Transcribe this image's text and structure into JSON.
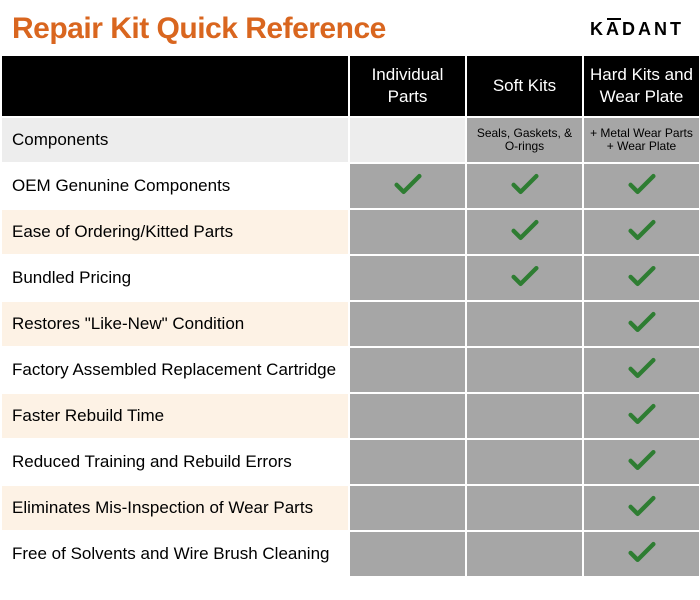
{
  "title": {
    "text": "Repair Kit Quick Reference",
    "color": "#d9661f",
    "fontsize": 30
  },
  "logo": {
    "text_pre": "K",
    "text_macron": "A",
    "text_post": "DANT",
    "fontsize": 18
  },
  "table": {
    "header_bg": "#000000",
    "header_color": "#ffffff",
    "header_fontsize": 17,
    "label_fontsize": 17,
    "data_bg": "#a6a6a6",
    "light_bg": "#ededed",
    "stripe_odd": "#fdf2e5",
    "stripe_even": "#ffffff",
    "border_color": "#ffffff",
    "columns": [
      "",
      "Individual Parts",
      "Soft Kits",
      "Hard Kits and Wear Plate"
    ],
    "components_row": {
      "label": "Components",
      "cells": [
        "",
        "Seals, Gaskets, & O-rings",
        "+ Metal Wear Parts\n+ Wear Plate"
      ],
      "cell_fontsize": 12
    },
    "rows": [
      {
        "label": "OEM Genunine Components",
        "checks": [
          true,
          true,
          true
        ]
      },
      {
        "label": "Ease of Ordering/Kitted Parts",
        "checks": [
          false,
          true,
          true
        ]
      },
      {
        "label": "Bundled Pricing",
        "checks": [
          false,
          true,
          true
        ]
      },
      {
        "label": "Restores \"Like-New\" Condition",
        "checks": [
          false,
          false,
          true
        ]
      },
      {
        "label": "Factory Assembled Replacement Cartridge",
        "checks": [
          false,
          false,
          true
        ]
      },
      {
        "label": "Faster Rebuild Time",
        "checks": [
          false,
          false,
          true
        ]
      },
      {
        "label": "Reduced Training and Rebuild Errors",
        "checks": [
          false,
          false,
          true
        ]
      },
      {
        "label": "Eliminates Mis-Inspection of Wear Parts",
        "checks": [
          false,
          false,
          true
        ]
      },
      {
        "label": "Free of Solvents and Wire Brush Cleaning",
        "checks": [
          false,
          false,
          true
        ]
      }
    ],
    "check_color": "#2e7d32"
  }
}
